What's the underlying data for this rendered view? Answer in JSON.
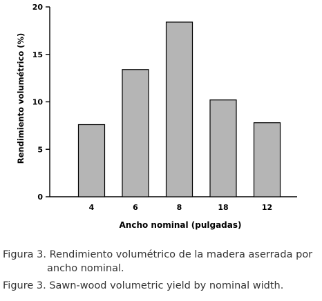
{
  "chart_data": {
    "type": "bar",
    "categories": [
      "4",
      "6",
      "8",
      "18",
      "12"
    ],
    "values": [
      7.6,
      13.4,
      18.4,
      10.2,
      7.8
    ],
    "xlabel": "Ancho nominal (pulgadas)",
    "ylabel": "Rendimiento volumétrico (%)",
    "ylim": [
      0,
      20
    ],
    "yticks": [
      0,
      5,
      10,
      15,
      20
    ],
    "grid": false,
    "colors": {
      "bar_fill": "#b5b5b5",
      "bar_stroke": "#000000",
      "axis": "#000000"
    }
  },
  "captions": {
    "spanish_line1": "Figura 3. Rendimiento volumétrico de la madera aserrada por",
    "spanish_line2": "ancho nominal.",
    "english": "Figure 3. Sawn-wood volumetric yield by nominal width."
  }
}
